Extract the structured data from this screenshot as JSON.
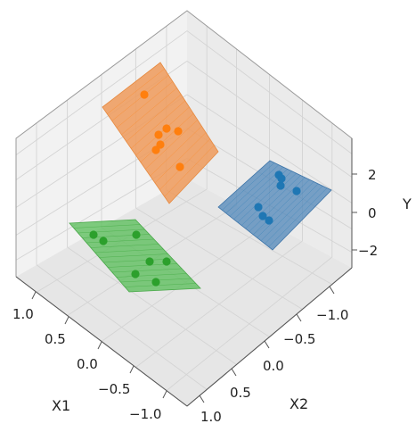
{
  "chart_data": {
    "type": "scatter",
    "projection": "3d",
    "axes": {
      "x1": {
        "label": "X1",
        "ticks": [
          "1.0",
          "0.5",
          "0.0",
          "−0.5",
          "−1.0"
        ]
      },
      "x2": {
        "label": "X2",
        "ticks": [
          "−1.0",
          "−0.5",
          "0.0",
          "0.5",
          "1.0"
        ]
      },
      "y": {
        "label": "Y",
        "ticks": [
          "2",
          "0",
          "−2"
        ]
      }
    },
    "grid": true,
    "series": [
      {
        "color": "#1f77b4",
        "plane_color": "#4f86b8"
      },
      {
        "color": "#ff7f0e",
        "plane_color": "#ee9a5a"
      },
      {
        "color": "#2ca02c",
        "plane_color": "#5fbf5f"
      }
    ]
  }
}
